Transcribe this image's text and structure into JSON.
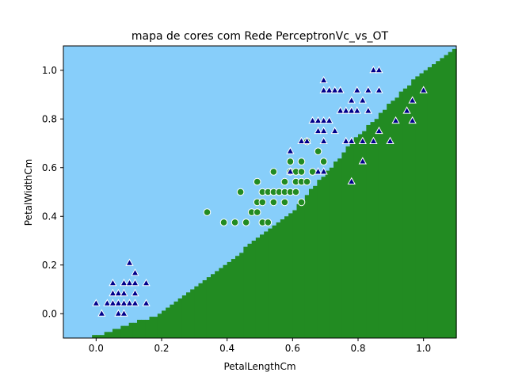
{
  "chart_data": {
    "type": "scatter",
    "title": "mapa de cores com Rede PerceptronVc_vs_OT",
    "xlabel": "PetalLengthCm",
    "ylabel": "PetalWidthCm",
    "xlim": [
      -0.1,
      1.1
    ],
    "ylim": [
      -0.1,
      1.1
    ],
    "xticks": [
      0.0,
      0.2,
      0.4,
      0.6,
      0.8,
      1.0
    ],
    "yticks": [
      0.0,
      0.2,
      0.4,
      0.6,
      0.8,
      1.0
    ],
    "xtick_labels": [
      "0.0",
      "0.2",
      "0.4",
      "0.6",
      "0.8",
      "1.0"
    ],
    "ytick_labels": [
      "0.0",
      "0.2",
      "0.4",
      "0.6",
      "0.8",
      "1.0"
    ],
    "grid": false,
    "legend": "none",
    "colors": {
      "region_upper": "#87cefa",
      "region_lower": "#228b22",
      "circle_marker": "#228b22",
      "triangle_marker": "#00008b",
      "marker_edge": "#ffffff",
      "frame": "#000000"
    },
    "decision_boundary": {
      "description_units": "data",
      "points": [
        [
          -0.1,
          -0.12
        ],
        [
          0.0,
          -0.09
        ],
        [
          0.2,
          0.0
        ],
        [
          0.4,
          0.21
        ],
        [
          0.6,
          0.42
        ],
        [
          0.8,
          0.73
        ],
        [
          1.0,
          1.0
        ],
        [
          1.1,
          1.09
        ]
      ],
      "cell_size": 0.0125
    },
    "series": [
      {
        "marker": "o",
        "points": [
          [
            0.339,
            0.417
          ],
          [
            0.39,
            0.375
          ],
          [
            0.424,
            0.375
          ],
          [
            0.441,
            0.5
          ],
          [
            0.458,
            0.375
          ],
          [
            0.475,
            0.417
          ],
          [
            0.492,
            0.417
          ],
          [
            0.492,
            0.458
          ],
          [
            0.492,
            0.542
          ],
          [
            0.508,
            0.375
          ],
          [
            0.508,
            0.458
          ],
          [
            0.508,
            0.5
          ],
          [
            0.525,
            0.375
          ],
          [
            0.525,
            0.5
          ],
          [
            0.542,
            0.458
          ],
          [
            0.542,
            0.5
          ],
          [
            0.542,
            0.583
          ],
          [
            0.559,
            0.5
          ],
          [
            0.576,
            0.458
          ],
          [
            0.576,
            0.5
          ],
          [
            0.576,
            0.542
          ],
          [
            0.593,
            0.5
          ],
          [
            0.593,
            0.583
          ],
          [
            0.593,
            0.625
          ],
          [
            0.61,
            0.5
          ],
          [
            0.61,
            0.542
          ],
          [
            0.61,
            0.583
          ],
          [
            0.627,
            0.458
          ],
          [
            0.627,
            0.542
          ],
          [
            0.627,
            0.583
          ],
          [
            0.627,
            0.625
          ],
          [
            0.644,
            0.542
          ],
          [
            0.644,
            0.708
          ],
          [
            0.661,
            0.583
          ],
          [
            0.678,
            0.667
          ],
          [
            0.695,
            0.625
          ]
        ]
      },
      {
        "marker": "^",
        "points": [
          [
            0.0,
            0.042
          ],
          [
            0.017,
            0.0
          ],
          [
            0.034,
            0.042
          ],
          [
            0.051,
            0.042
          ],
          [
            0.051,
            0.083
          ],
          [
            0.051,
            0.125
          ],
          [
            0.068,
            0.042
          ],
          [
            0.068,
            0.083
          ],
          [
            0.068,
            0.0
          ],
          [
            0.085,
            0.0
          ],
          [
            0.085,
            0.042
          ],
          [
            0.085,
            0.083
          ],
          [
            0.085,
            0.125
          ],
          [
            0.102,
            0.042
          ],
          [
            0.102,
            0.125
          ],
          [
            0.102,
            0.208
          ],
          [
            0.119,
            0.042
          ],
          [
            0.119,
            0.083
          ],
          [
            0.119,
            0.125
          ],
          [
            0.119,
            0.167
          ],
          [
            0.153,
            0.042
          ],
          [
            0.153,
            0.125
          ],
          [
            0.593,
            0.667
          ],
          [
            0.593,
            0.583
          ],
          [
            0.627,
            0.708
          ],
          [
            0.644,
            0.708
          ],
          [
            0.661,
            0.792
          ],
          [
            0.678,
            0.75
          ],
          [
            0.678,
            0.792
          ],
          [
            0.678,
            0.583
          ],
          [
            0.695,
            0.583
          ],
          [
            0.695,
            0.708
          ],
          [
            0.695,
            0.75
          ],
          [
            0.695,
            0.792
          ],
          [
            0.695,
            0.917
          ],
          [
            0.695,
            0.958
          ],
          [
            0.712,
            0.792
          ],
          [
            0.712,
            0.917
          ],
          [
            0.729,
            0.75
          ],
          [
            0.729,
            0.917
          ],
          [
            0.746,
            0.833
          ],
          [
            0.746,
            0.917
          ],
          [
            0.763,
            0.708
          ],
          [
            0.763,
            0.833
          ],
          [
            0.78,
            0.542
          ],
          [
            0.78,
            0.708
          ],
          [
            0.78,
            0.833
          ],
          [
            0.78,
            0.875
          ],
          [
            0.797,
            0.833
          ],
          [
            0.797,
            0.917
          ],
          [
            0.814,
            0.625
          ],
          [
            0.814,
            0.708
          ],
          [
            0.814,
            0.875
          ],
          [
            0.831,
            0.833
          ],
          [
            0.831,
            0.917
          ],
          [
            0.847,
            0.708
          ],
          [
            0.847,
            1.0
          ],
          [
            0.864,
            0.75
          ],
          [
            0.864,
            0.917
          ],
          [
            0.864,
            1.0
          ],
          [
            0.898,
            0.708
          ],
          [
            0.915,
            0.792
          ],
          [
            0.949,
            0.833
          ],
          [
            0.966,
            0.792
          ],
          [
            0.966,
            0.875
          ],
          [
            1.0,
            0.917
          ]
        ]
      }
    ]
  }
}
